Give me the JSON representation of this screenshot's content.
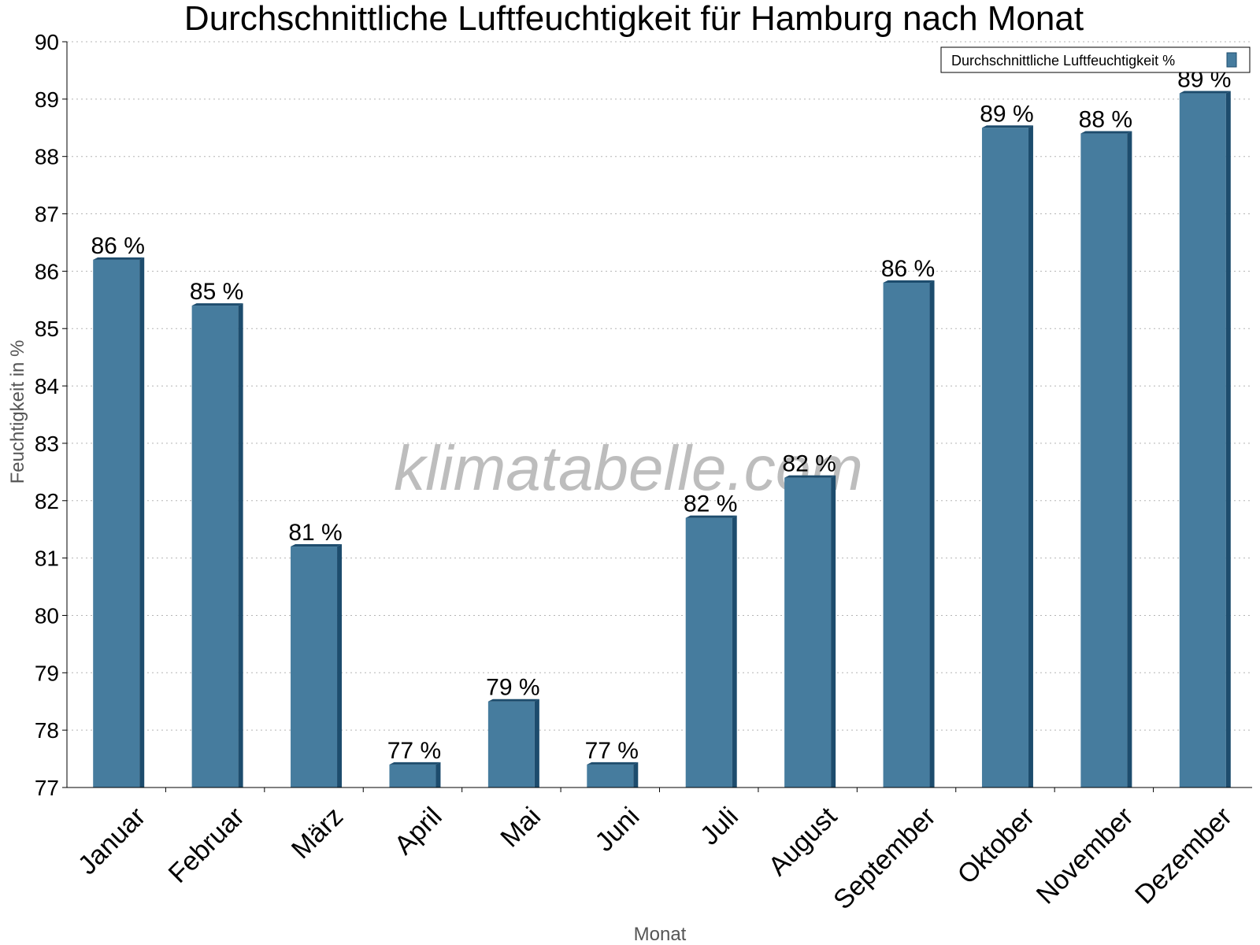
{
  "chart_data": {
    "type": "bar",
    "title": "Durchschnittliche Luftfeuchtigkeit für Hamburg nach Monat",
    "xlabel": "Monat",
    "ylabel": "Feuchtigkeit in %",
    "ylim": [
      77,
      90
    ],
    "yticks": [
      "77",
      "78",
      "79",
      "80",
      "81",
      "82",
      "83",
      "84",
      "85",
      "86",
      "87",
      "88",
      "89",
      "90"
    ],
    "categories": [
      "Januar",
      "Februar",
      "März",
      "April",
      "Mai",
      "Juni",
      "Juli",
      "August",
      "September",
      "Oktober",
      "November",
      "Dezember"
    ],
    "series": [
      {
        "name": "Durchschnittliche Luftfeuchtigkeit %",
        "values": [
          86.2,
          85.4,
          81.2,
          77.4,
          78.5,
          77.4,
          81.7,
          82.4,
          85.8,
          88.5,
          88.4,
          89.1
        ],
        "labels": [
          "86 %",
          "85 %",
          "81 %",
          "77 %",
          "79 %",
          "77 %",
          "82 %",
          "82 %",
          "86 %",
          "89 %",
          "88 %",
          "89 %"
        ],
        "color": "#467c9e",
        "side_color": "#1d4c6d"
      }
    ],
    "grid": true,
    "legend_position": "top-right",
    "watermark": "klimatabelle.com"
  }
}
